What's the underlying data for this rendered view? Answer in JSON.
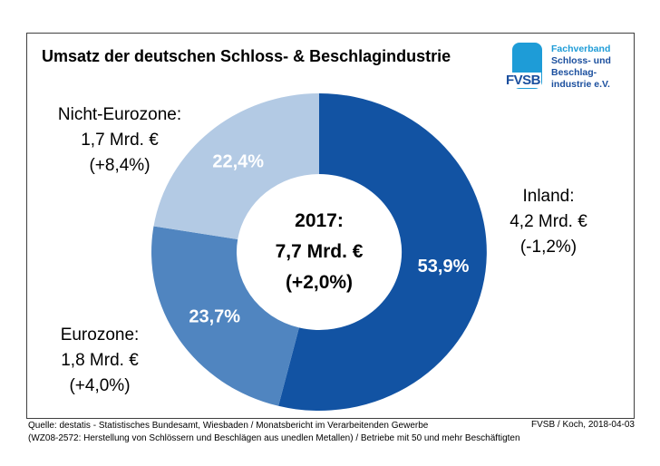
{
  "title": "Umsatz der deutschen Schloss- & Beschlagindustrie",
  "logo": {
    "abbr": "FVSB",
    "line1": "Fachverband",
    "line2": "Schloss- und",
    "line3": "Beschlag-",
    "line4": "industrie e.V.",
    "cyan": "#1E9CD7",
    "blue": "#1B4F9E"
  },
  "chart_data": {
    "type": "pie",
    "donut": true,
    "title": "Umsatz der deutschen Schloss- & Beschlagindustrie",
    "direction": "clockwise",
    "start_angle_deg": 0,
    "center": {
      "line1": "2017:",
      "line2": "7,7 Mrd. €",
      "line3": "(+2,0%)"
    },
    "slices": [
      {
        "id": "inland",
        "label": "Inland",
        "amount": "4,2 Mrd. €",
        "change": "(-1,2%)",
        "percent": 53.9,
        "percent_label": "53,9%",
        "color": "#1253A3"
      },
      {
        "id": "eurozone",
        "label": "Eurozone",
        "amount": "1,8 Mrd. €",
        "change": "(+4,0%)",
        "percent": 23.7,
        "percent_label": "23,7%",
        "color": "#5085C0"
      },
      {
        "id": "nicht-eurozone",
        "label": "Nicht-Eurozone",
        "amount": "1,7 Mrd. €",
        "change": "(+8,4%)",
        "percent": 22.4,
        "percent_label": "22,4%",
        "color": "#B3CAE4"
      }
    ]
  },
  "callouts": {
    "nicht_eurozone": {
      "line1": "Nicht-Eurozone:",
      "line2": "1,7 Mrd. €",
      "line3": "(+8,4%)"
    },
    "inland": {
      "line1": "Inland:",
      "line2": "4,2 Mrd. €",
      "line3": "(-1,2%)"
    },
    "eurozone": {
      "line1": "Eurozone:",
      "line2": "1,8 Mrd. €",
      "line3": "(+4,0%)"
    }
  },
  "footer": {
    "source_line1": "Quelle: destatis - Statistisches Bundesamt, Wiesbaden / Monatsbericht im Verarbeitenden Gewerbe",
    "source_line2": "(WZ08-2572: Herstellung von Schlössern und Beschlägen aus unedlen Metallen) / Betriebe mit 50 und mehr Beschäftigten",
    "credit": "FVSB / Koch, 2018-04-03"
  }
}
